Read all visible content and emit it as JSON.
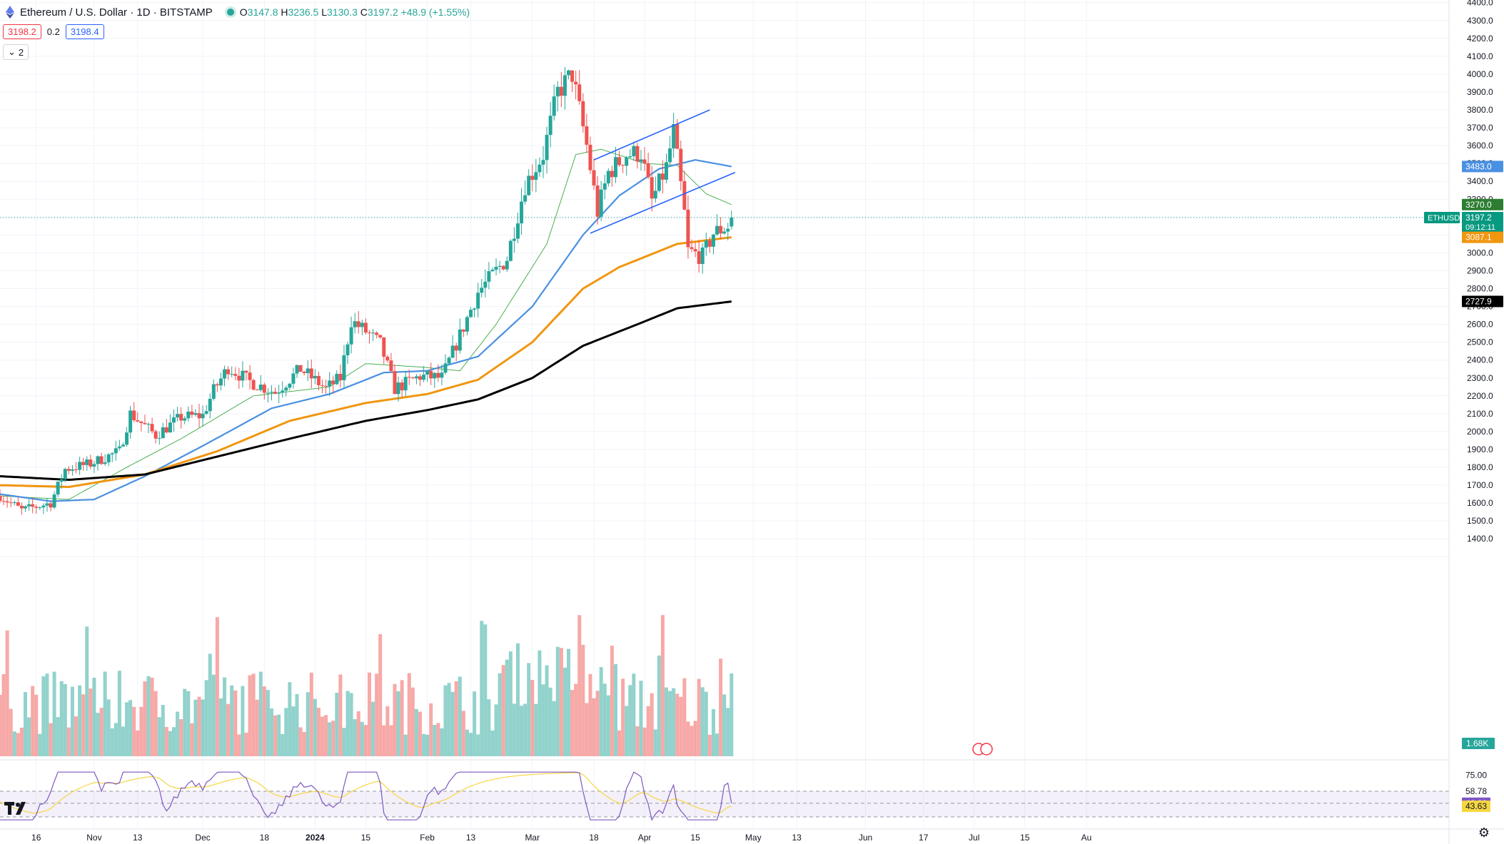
{
  "header": {
    "symbol_title": "Ethereum / U.S. Dollar · 1D · BITSTAMP",
    "ohlc": {
      "o_label": "O",
      "o": "3147.8",
      "h_label": "H",
      "h": "3236.5",
      "l_label": "L",
      "l": "3130.3",
      "c_label": "C",
      "c": "3197.2",
      "change": "+48.9 (+1.55%)"
    },
    "sell_price": "3198.2",
    "spread": "0.2",
    "buy_price": "3198.4",
    "indicators_toggle": "2"
  },
  "colors": {
    "up": "#26a69a",
    "down": "#ef5350",
    "ma20": "#4caf50",
    "ma50": "#4a90e2",
    "ma100": "#f0960f",
    "ma200": "#000000",
    "trendline": "#2962ff",
    "rsi_line": "#7e57c2",
    "rsi_ma": "#f5d742"
  },
  "chart_data": {
    "type": "candlestick",
    "symbol": "ETHUSD",
    "price_axis": {
      "min": 1300,
      "max": 4400,
      "step": 100,
      "scale": "linear"
    },
    "time_axis": {
      "start": "2023-10-06",
      "end": "2024-08-01",
      "ticks": [
        {
          "date": "2023-10-16",
          "label": "16"
        },
        {
          "date": "2023-11-01",
          "label": "Nov"
        },
        {
          "date": "2023-11-13",
          "label": "13"
        },
        {
          "date": "2023-12-01",
          "label": "Dec"
        },
        {
          "date": "2023-12-18",
          "label": "18"
        },
        {
          "date": "2024-01-01",
          "label": "2024",
          "bold": true
        },
        {
          "date": "2024-01-15",
          "label": "15"
        },
        {
          "date": "2024-02-01",
          "label": "Feb"
        },
        {
          "date": "2024-02-13",
          "label": "13"
        },
        {
          "date": "2024-03-01",
          "label": "Mar"
        },
        {
          "date": "2024-03-18",
          "label": "18"
        },
        {
          "date": "2024-04-01",
          "label": "Apr"
        },
        {
          "date": "2024-04-15",
          "label": "15"
        },
        {
          "date": "2024-05-01",
          "label": "May"
        },
        {
          "date": "2024-05-13",
          "label": "13"
        },
        {
          "date": "2024-06-01",
          "label": "Jun"
        },
        {
          "date": "2024-06-17",
          "label": "17"
        },
        {
          "date": "2024-07-01",
          "label": "Jul"
        },
        {
          "date": "2024-07-15",
          "label": "15"
        },
        {
          "date": "2024-08-01",
          "label": "Au"
        }
      ]
    },
    "candles": {
      "first_date": "2023-10-06",
      "last_date": "2024-04-25",
      "anchors": [
        [
          "2023-10-06",
          1640
        ],
        [
          "2023-10-12",
          1560
        ],
        [
          "2023-10-20",
          1600
        ],
        [
          "2023-10-24",
          1790
        ],
        [
          "2023-10-31",
          1820
        ],
        [
          "2023-11-08",
          1890
        ],
        [
          "2023-11-11",
          2100
        ],
        [
          "2023-11-18",
          1980
        ],
        [
          "2023-11-25",
          2080
        ],
        [
          "2023-12-01",
          2090
        ],
        [
          "2023-12-04",
          2230
        ],
        [
          "2023-12-08",
          2360
        ],
        [
          "2023-12-14",
          2280
        ],
        [
          "2023-12-21",
          2220
        ],
        [
          "2023-12-28",
          2350
        ],
        [
          "2024-01-04",
          2240
        ],
        [
          "2024-01-08",
          2300
        ],
        [
          "2024-01-11",
          2620
        ],
        [
          "2024-01-15",
          2560
        ],
        [
          "2024-01-19",
          2490
        ],
        [
          "2024-01-23",
          2240
        ],
        [
          "2024-01-30",
          2310
        ],
        [
          "2024-02-05",
          2300
        ],
        [
          "2024-02-09",
          2490
        ],
        [
          "2024-02-15",
          2780
        ],
        [
          "2024-02-23",
          2970
        ],
        [
          "2024-02-28",
          3380
        ],
        [
          "2024-03-04",
          3550
        ],
        [
          "2024-03-08",
          3900
        ],
        [
          "2024-03-12",
          4000
        ],
        [
          "2024-03-16",
          3600
        ],
        [
          "2024-03-19",
          3230
        ],
        [
          "2024-03-22",
          3450
        ],
        [
          "2024-03-27",
          3550
        ],
        [
          "2024-03-31",
          3560
        ],
        [
          "2024-04-03",
          3290
        ],
        [
          "2024-04-07",
          3480
        ],
        [
          "2024-04-09",
          3680
        ],
        [
          "2024-04-12",
          3220
        ],
        [
          "2024-04-13",
          3010
        ],
        [
          "2024-04-17",
          2980
        ],
        [
          "2024-04-20",
          3110
        ],
        [
          "2024-04-24",
          3149
        ],
        [
          "2024-04-25",
          3197.2
        ]
      ],
      "last": {
        "open": 3147.8,
        "high": 3236.5,
        "low": 3130.3,
        "close": 3197.2
      }
    },
    "moving_averages": [
      {
        "period": 20,
        "label_value": "3270.0",
        "anchors": [
          [
            "2023-10-06",
            1640
          ],
          [
            "2023-10-25",
            1620
          ],
          [
            "2023-11-10",
            1800
          ],
          [
            "2023-11-25",
            1960
          ],
          [
            "2023-12-15",
            2200
          ],
          [
            "2024-01-05",
            2250
          ],
          [
            "2024-01-15",
            2380
          ],
          [
            "2024-01-31",
            2360
          ],
          [
            "2024-02-10",
            2340
          ],
          [
            "2024-02-20",
            2600
          ],
          [
            "2024-03-05",
            3050
          ],
          [
            "2024-03-13",
            3550
          ],
          [
            "2024-03-20",
            3580
          ],
          [
            "2024-04-01",
            3500
          ],
          [
            "2024-04-10",
            3490
          ],
          [
            "2024-04-18",
            3330
          ],
          [
            "2024-04-25",
            3270
          ]
        ]
      },
      {
        "period": 50,
        "label_value": "3483.0",
        "anchors": [
          [
            "2023-10-06",
            1650
          ],
          [
            "2023-10-20",
            1610
          ],
          [
            "2023-11-01",
            1620
          ],
          [
            "2023-11-15",
            1750
          ],
          [
            "2023-12-01",
            1920
          ],
          [
            "2023-12-20",
            2130
          ],
          [
            "2024-01-05",
            2210
          ],
          [
            "2024-01-20",
            2330
          ],
          [
            "2024-02-01",
            2340
          ],
          [
            "2024-02-15",
            2420
          ],
          [
            "2024-03-01",
            2700
          ],
          [
            "2024-03-15",
            3100
          ],
          [
            "2024-03-25",
            3320
          ],
          [
            "2024-04-05",
            3470
          ],
          [
            "2024-04-15",
            3520
          ],
          [
            "2024-04-25",
            3483
          ]
        ]
      },
      {
        "period": 100,
        "label_value": "3087.1",
        "anchors": [
          [
            "2023-10-06",
            1700
          ],
          [
            "2023-10-25",
            1690
          ],
          [
            "2023-11-15",
            1760
          ],
          [
            "2023-12-05",
            1890
          ],
          [
            "2023-12-25",
            2060
          ],
          [
            "2024-01-15",
            2160
          ],
          [
            "2024-02-01",
            2210
          ],
          [
            "2024-02-15",
            2290
          ],
          [
            "2024-03-01",
            2500
          ],
          [
            "2024-03-15",
            2800
          ],
          [
            "2024-03-25",
            2920
          ],
          [
            "2024-04-10",
            3050
          ],
          [
            "2024-04-25",
            3087.1
          ]
        ]
      },
      {
        "period": 200,
        "label_value": "2727.9",
        "anchors": [
          [
            "2023-10-06",
            1750
          ],
          [
            "2023-10-25",
            1730
          ],
          [
            "2023-11-15",
            1760
          ],
          [
            "2023-12-05",
            1860
          ],
          [
            "2023-12-25",
            1960
          ],
          [
            "2024-01-15",
            2060
          ],
          [
            "2024-02-01",
            2120
          ],
          [
            "2024-02-15",
            2180
          ],
          [
            "2024-03-01",
            2300
          ],
          [
            "2024-03-15",
            2480
          ],
          [
            "2024-03-30",
            2600
          ],
          [
            "2024-04-10",
            2690
          ],
          [
            "2024-04-25",
            2727.9
          ]
        ]
      }
    ],
    "trendlines": [
      {
        "from": [
          "2024-03-18",
          3520
        ],
        "to": [
          "2024-04-19",
          3800
        ]
      },
      {
        "from": [
          "2024-03-17",
          3110
        ],
        "to": [
          "2024-04-26",
          3450
        ]
      }
    ],
    "price_labels": [
      {
        "value": 3483.0,
        "text": "3483.0",
        "color": "#4a90e2"
      },
      {
        "value": 3270.0,
        "text": "3270.0",
        "color": "#2e7d32"
      },
      {
        "value": 3197.2,
        "text": "3197.2",
        "sub": "09:12:11",
        "color": "#089981",
        "symbol": "ETHUSD"
      },
      {
        "value": 3087.1,
        "text": "3087.1",
        "color": "#f0960f"
      },
      {
        "value": 2727.9,
        "text": "2727.9",
        "color": "#000000"
      }
    ],
    "volume": {
      "last_label": "1.68K"
    },
    "rsi": {
      "levels": [
        75.0,
        58.78,
        46.69,
        43.63
      ],
      "level_labels": [
        "75.00",
        "58.78",
        "46.69",
        "43.63"
      ],
      "value": 46.69,
      "ma": 43.63
    }
  }
}
